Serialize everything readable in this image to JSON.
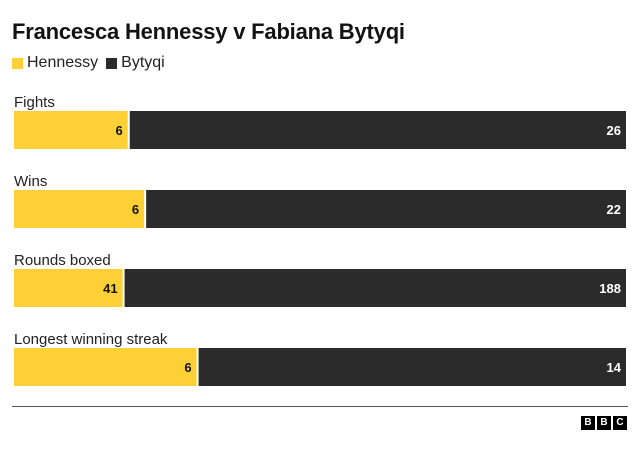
{
  "header": {
    "title": "Francesca Hennessy v Fabiana Bytyqi"
  },
  "legend": [
    {
      "label": "Hennessy",
      "color": "#FDD135"
    },
    {
      "label": "Bytyqi",
      "color": "#2B2B2B"
    }
  ],
  "colors": {
    "hennessy": "#FDD135",
    "bytyqi": "#2B2B2B",
    "text": "#222222",
    "baseline": "#555555"
  },
  "chart_data": {
    "type": "bar",
    "stacked": "100%",
    "orientation": "horizontal",
    "categories": [
      "Fights",
      "Wins",
      "Rounds boxed",
      "Longest winning streak"
    ],
    "series": [
      {
        "name": "Hennessy",
        "values": [
          6,
          6,
          41,
          6
        ]
      },
      {
        "name": "Bytyqi",
        "values": [
          26,
          22,
          188,
          14
        ]
      }
    ],
    "title": "Francesca Hennessy v Fabiana Bytyqi",
    "legend_position": "top-left",
    "grid": false
  },
  "footer": {
    "logo": [
      "B",
      "B",
      "C"
    ]
  }
}
